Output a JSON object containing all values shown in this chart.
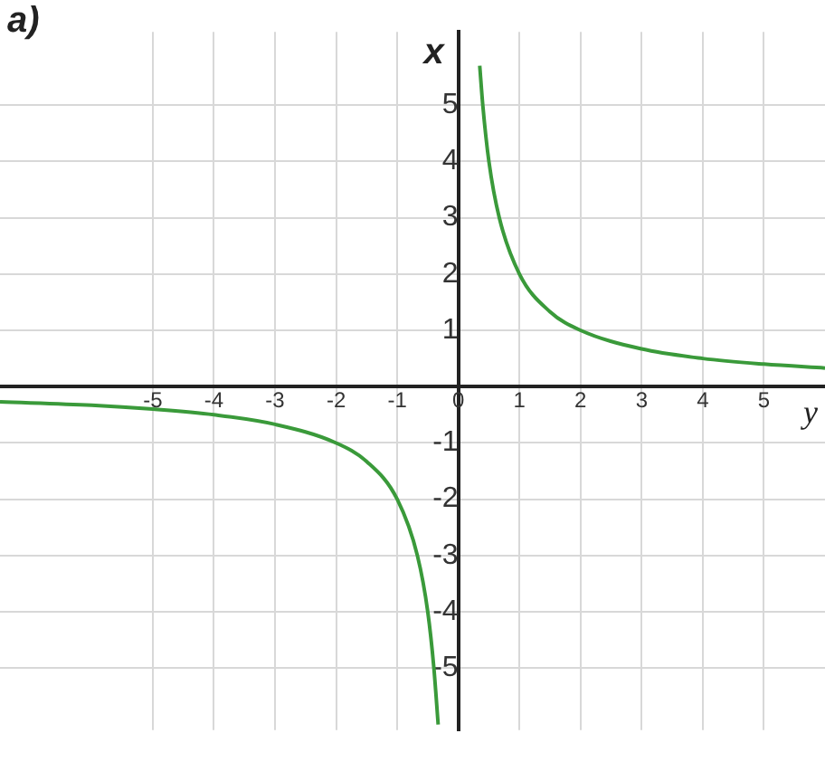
{
  "chart_data": {
    "type": "line",
    "title": "a)",
    "xlabel": "y",
    "ylabel": "x",
    "xlim": [
      -7.5,
      6
    ],
    "ylim": [
      -6.1,
      6.3
    ],
    "xticks": [
      -5,
      -4,
      -3,
      -2,
      -1,
      {
        "value": 0,
        "label": "0"
      },
      1,
      2,
      3,
      4,
      5
    ],
    "yticks": [
      -5,
      -4,
      -3,
      -2,
      -1,
      {
        "value": 0,
        "label": null
      },
      1,
      2,
      3,
      4,
      5
    ],
    "grid": true,
    "legend": false,
    "marker": "none",
    "line_style": "solid",
    "series": [
      {
        "color": "#3a9a3a",
        "x": [
          0.35,
          0.4,
          0.5,
          0.67,
          1,
          1.5,
          2,
          3,
          4,
          5,
          6
        ],
        "values": [
          5.7,
          5,
          4,
          3,
          2,
          1.33,
          1,
          0.67,
          0.5,
          0.4,
          0.33
        ]
      },
      {
        "color": "#3a9a3a",
        "x": [
          -7.5,
          -6,
          -5,
          -4,
          -3,
          -2,
          -1.5,
          -1,
          -0.67,
          -0.5,
          -0.4,
          -0.33
        ],
        "values": [
          -0.27,
          -0.33,
          -0.4,
          -0.5,
          -0.67,
          -1,
          -1.33,
          -2,
          -3,
          -4,
          -5,
          -6
        ]
      }
    ]
  }
}
